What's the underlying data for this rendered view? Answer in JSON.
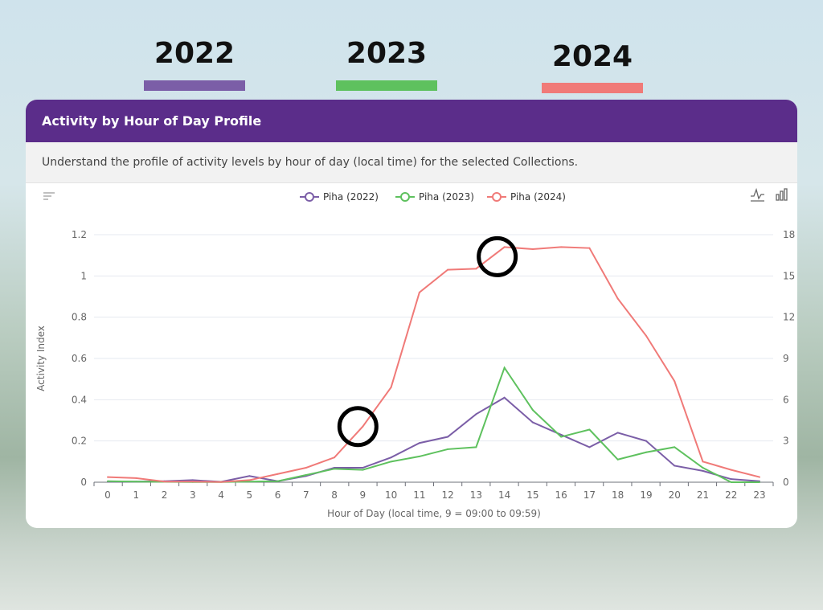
{
  "year_legend": [
    {
      "label": "2022",
      "color": "#7b5ea7"
    },
    {
      "label": "2023",
      "color": "#5ec15e"
    },
    {
      "label": "2024",
      "color": "#f07a78"
    }
  ],
  "card": {
    "title": "Activity by Hour of Day Profile",
    "description": "Understand the profile of activity levels by hour of day (local time) for the selected Collections.",
    "toolbar_icons": [
      "sort-lines-icon",
      "line-chart-icon",
      "bar-chart-icon"
    ]
  },
  "chart_data": {
    "type": "line",
    "xlabel": "Hour of Day (local time, 9 = 09:00 to 09:59)",
    "ylabel": "Activity Index",
    "x": [
      0,
      1,
      2,
      3,
      4,
      5,
      6,
      7,
      8,
      9,
      10,
      11,
      12,
      13,
      14,
      15,
      16,
      17,
      18,
      19,
      20,
      21,
      22,
      23
    ],
    "ylim": [
      0,
      1.2
    ],
    "yticks": [
      "0",
      "0.2",
      "0.4",
      "0.6",
      "0.8",
      "1",
      "1.2"
    ],
    "y2lim": [
      0,
      18
    ],
    "y2ticks": [
      "0",
      "3",
      "6",
      "9",
      "12",
      "15",
      "18"
    ],
    "grid": true,
    "legend_position": "top",
    "series": [
      {
        "name": "Piha (2022)",
        "color": "#7b5ea7",
        "values": [
          0.003,
          0.003,
          0.005,
          0.01,
          0.002,
          0.03,
          0.005,
          0.03,
          0.07,
          0.07,
          0.12,
          0.19,
          0.22,
          0.33,
          0.41,
          0.29,
          0.23,
          0.17,
          0.24,
          0.2,
          0.08,
          0.055,
          0.015,
          0.005
        ]
      },
      {
        "name": "Piha (2023)",
        "color": "#5ec15e",
        "values": [
          0.005,
          0.003,
          0.002,
          0.001,
          0.001,
          0.003,
          0.005,
          0.035,
          0.065,
          0.06,
          0.1,
          0.125,
          0.16,
          0.17,
          0.555,
          0.35,
          0.22,
          0.255,
          0.11,
          0.145,
          0.17,
          0.07,
          0,
          0
        ]
      },
      {
        "name": "Piha (2024)",
        "color": "#f07a78",
        "values": [
          0.025,
          0.02,
          0.003,
          0.003,
          0.001,
          0.01,
          0.04,
          0.07,
          0.12,
          0.27,
          0.46,
          0.92,
          1.03,
          1.035,
          1.14,
          1.13,
          1.14,
          1.135,
          0.89,
          0.71,
          0.49,
          0.1,
          0.06,
          0.025
        ]
      }
    ],
    "annotations": [
      {
        "shape": "circle",
        "x": 9,
        "y": 0.27
      },
      {
        "shape": "circle",
        "x": 14,
        "y": 1.14
      }
    ]
  }
}
